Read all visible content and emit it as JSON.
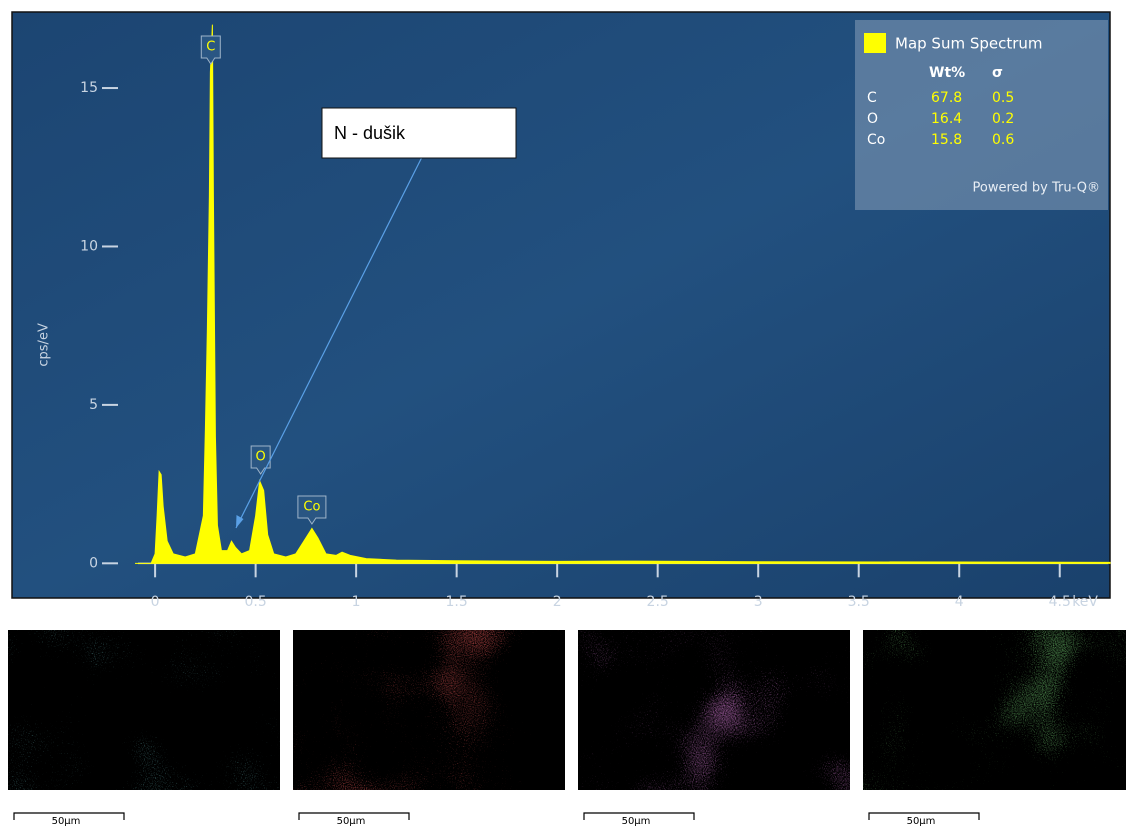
{
  "chart_data": {
    "type": "area",
    "y_label": "cps/eV",
    "x_unit": "keV",
    "color": "#ffff00",
    "xlim": [
      -0.1,
      4.75
    ],
    "ylim": [
      -1,
      17.4
    ],
    "xticks": [
      0,
      0.5,
      1,
      1.5,
      2,
      2.5,
      3,
      3.5,
      4,
      4.5
    ],
    "yticks": [
      0,
      5,
      10,
      15
    ],
    "x": [
      -0.1,
      -0.02,
      0,
      0.01,
      0.02,
      0.03,
      0.04,
      0.06,
      0.09,
      0.15,
      0.2,
      0.24,
      0.25,
      0.26,
      0.27,
      0.275,
      0.285,
      0.29,
      0.3,
      0.31,
      0.33,
      0.36,
      0.38,
      0.4,
      0.43,
      0.47,
      0.5,
      0.52,
      0.54,
      0.56,
      0.59,
      0.65,
      0.7,
      0.74,
      0.78,
      0.81,
      0.85,
      0.9,
      0.93,
      0.97,
      1.05,
      1.2,
      1.5,
      2.0,
      2.3,
      3.0,
      4.0,
      4.75
    ],
    "values": [
      0,
      0,
      0.3,
      1.5,
      2.9,
      2.8,
      1.8,
      0.7,
      0.3,
      0.2,
      0.3,
      1.5,
      4.2,
      7.4,
      11.6,
      15.5,
      17.0,
      11.6,
      4.0,
      1.2,
      0.4,
      0.4,
      0.7,
      0.5,
      0.3,
      0.4,
      1.5,
      2.6,
      2.3,
      0.9,
      0.3,
      0.2,
      0.3,
      0.7,
      1.1,
      0.8,
      0.3,
      0.25,
      0.35,
      0.25,
      0.15,
      0.1,
      0.08,
      0.06,
      0.07,
      0.05,
      0.04,
      0.03
    ],
    "peaks": [
      {
        "label": "C",
        "x": 0.277
      },
      {
        "label": "O",
        "x": 0.525
      },
      {
        "label": "Co",
        "x": 0.78
      }
    ],
    "annotation": "N - dušik",
    "legend": {
      "name": "Map Sum Spectrum",
      "columns": [
        "Wt%",
        "σ"
      ],
      "rows": [
        [
          "C",
          67.8,
          0.5
        ],
        [
          "O",
          16.4,
          0.2
        ],
        [
          "Co",
          15.8,
          0.6
        ]
      ],
      "footer": "Powered by Tru-Q®"
    }
  },
  "maps": [
    {
      "color": "#3fdbe3",
      "scale_label": "50µm"
    },
    {
      "color": "#ff1e1e",
      "scale_label": "50µm"
    },
    {
      "color": "#d23ed2",
      "scale_label": "50µm"
    },
    {
      "color": "#3fe03f",
      "scale_label": "50µm"
    }
  ]
}
